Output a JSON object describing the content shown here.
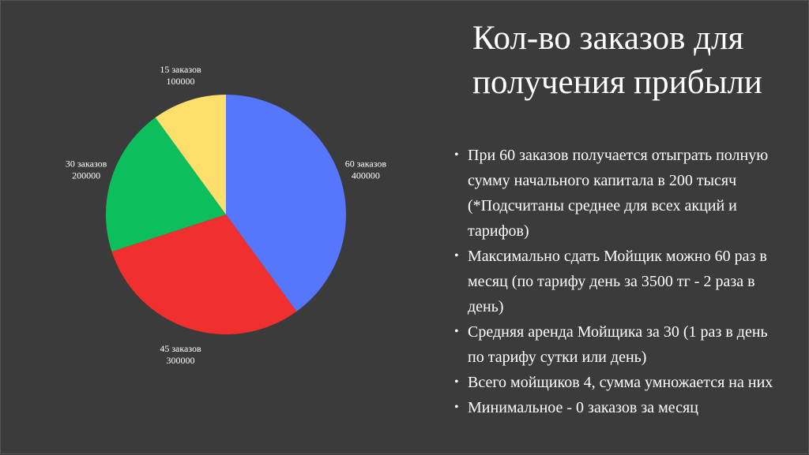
{
  "slide": {
    "title": "Кол-во заказов для получения прибыли",
    "bullets": [
      "При 60 заказов получается отыграть полную сумму начального капитала в 200 тысяч (*Подсчитаны среднее для всех акций и тарифов)",
      "Максимально сдать Мойщик можно 60 раз в месяц (по тарифу день за 3500 тг - 2 раза в день)",
      "Средняя аренда Мойщика за 30 (1 раз в день по тарифу сутки или день)",
      "Всего мойщиков 4, сумма умножается на них",
      "Минимальное - 0 заказов за месяц"
    ]
  },
  "chart_data": {
    "type": "pie",
    "title": "",
    "slices": [
      {
        "label": "60 заказов",
        "value": 400000,
        "value_label": "400000",
        "color": "#5677fc"
      },
      {
        "label": "45 заказов",
        "value": 300000,
        "value_label": "300000",
        "color": "#f22f2f"
      },
      {
        "label": "30 заказов",
        "value": 200000,
        "value_label": "200000",
        "color": "#0dbf5c"
      },
      {
        "label": "15 заказов",
        "value": 100000,
        "value_label": "100000",
        "color": "#ffdf6b"
      }
    ]
  }
}
